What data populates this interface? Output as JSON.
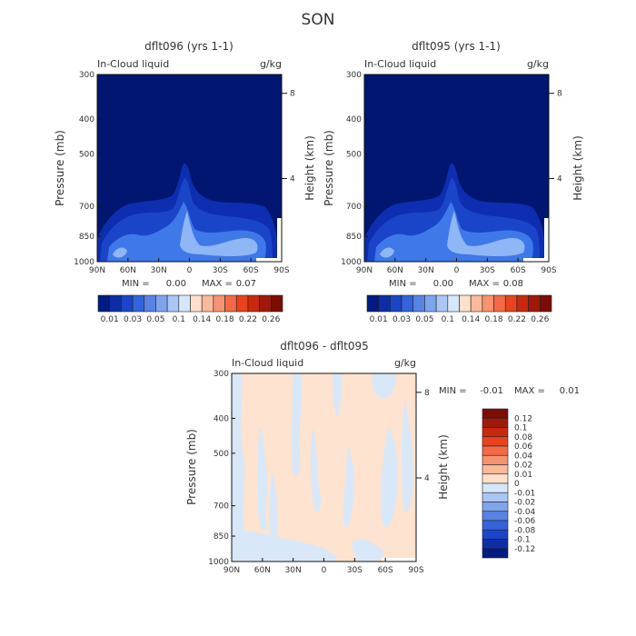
{
  "figure_title": "SON",
  "colors": {
    "positive": [
      "#fde0cc",
      "#f9b99a",
      "#f69370",
      "#f26a46",
      "#e8431f",
      "#c8290e",
      "#9e1a08",
      "#7c0d04"
    ],
    "negative": [
      "#d6e6fb",
      "#aac6f4",
      "#7ea5ec",
      "#5783e3",
      "#3463db",
      "#1a45c9",
      "#0d2da6",
      "#001c82"
    ],
    "field_dark": "#001670",
    "field_mid": "#0d2eb0",
    "field_light": "#3f78e8",
    "field_lighter": "#8fb6f5",
    "diff_pos": "#fde3d0",
    "diff_neg": "#d9e8f8"
  },
  "chart_data": [
    {
      "type": "heatmap",
      "title": "dflt096 (yrs 1-1)",
      "left_label": "In-Cloud liquid",
      "right_label": "g/kg",
      "ylabel": "Pressure (mb)",
      "ylabel_right": "Height (km)",
      "x_ticks": [
        "90N",
        "60N",
        "30N",
        "0",
        "30S",
        "60S",
        "90S"
      ],
      "y_ticks": [
        "300",
        "400",
        "500",
        "700",
        "850",
        "1000"
      ],
      "y_ticks_right": [
        "8",
        "4"
      ],
      "min_label": "MIN =",
      "min": "0.00",
      "max_label": "MAX =",
      "max": "0.07",
      "colorbar_labels": [
        "0.01",
        "0.03",
        "0.05",
        "0.1",
        "0.14",
        "0.18",
        "0.22",
        "0.26"
      ]
    },
    {
      "type": "heatmap",
      "title": "dflt095 (yrs 1-1)",
      "left_label": "In-Cloud liquid",
      "right_label": "g/kg",
      "ylabel": "Pressure (mb)",
      "ylabel_right": "Height (km)",
      "x_ticks": [
        "90N",
        "60N",
        "30N",
        "0",
        "30S",
        "60S",
        "90S"
      ],
      "y_ticks": [
        "300",
        "400",
        "500",
        "700",
        "850",
        "1000"
      ],
      "y_ticks_right": [
        "8",
        "4"
      ],
      "min_label": "MIN =",
      "min": "0.00",
      "max_label": "MAX =",
      "max": "0.08",
      "colorbar_labels": [
        "0.01",
        "0.03",
        "0.05",
        "0.1",
        "0.14",
        "0.18",
        "0.22",
        "0.26"
      ]
    },
    {
      "type": "heatmap",
      "title": "dflt096 - dflt095",
      "left_label": "In-Cloud liquid",
      "right_label": "g/kg",
      "ylabel": "Pressure (mb)",
      "ylabel_right": "Height (km)",
      "x_ticks": [
        "90N",
        "60N",
        "30N",
        "0",
        "30S",
        "60S",
        "90S"
      ],
      "y_ticks": [
        "300",
        "400",
        "500",
        "700",
        "850",
        "1000"
      ],
      "y_ticks_right": [
        "8",
        "4"
      ],
      "min_label": "MIN =",
      "min": "-0.01",
      "max_label": "MAX =",
      "max": "0.01",
      "colorbar_labels": [
        "0.12",
        "0.1",
        "0.08",
        "0.06",
        "0.04",
        "0.02",
        "0.01",
        "0",
        "-0.01",
        "-0.02",
        "-0.04",
        "-0.06",
        "-0.08",
        "-0.1",
        "-0.12"
      ]
    }
  ]
}
